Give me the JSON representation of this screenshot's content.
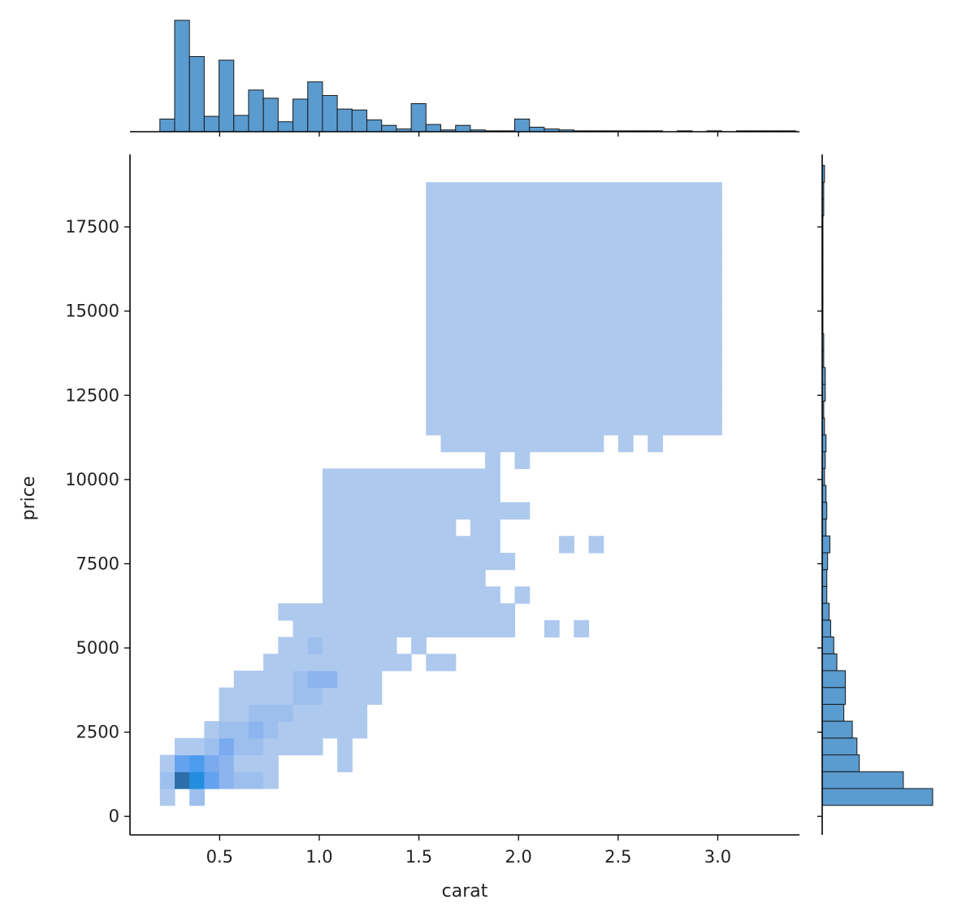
{
  "chart_data": {
    "type": "heatmap",
    "subtype": "jointplot-histogram",
    "title": "",
    "xlabel": "carat",
    "ylabel": "price",
    "xlim": [
      0.05,
      3.41
    ],
    "ylim": [
      -550,
      19650
    ],
    "x_ticks": [
      0.5,
      1.0,
      1.5,
      2.0,
      2.5,
      3.0
    ],
    "x_tick_labels": [
      "0.5",
      "1.0",
      "1.5",
      "2.0",
      "2.5",
      "3.0"
    ],
    "y_ticks": [
      0,
      2500,
      5000,
      7500,
      10000,
      12500,
      15000,
      17500
    ],
    "y_tick_labels": [
      "0",
      "2500",
      "5000",
      "7500",
      "10000",
      "12500",
      "15000",
      "17500"
    ],
    "grid": false,
    "color": "#4c8fd6",
    "bar_color": "#5a9bd0",
    "bin_origin_x": 0.2,
    "bin_width_x": 0.0742,
    "bin_origin_y": 326,
    "bin_width_y": 500,
    "heatmap_cells": [
      [
        1,
        0,
        2,
        0,
        0,
        0,
        0,
        0,
        0,
        0,
        0,
        0,
        0,
        0,
        0,
        0,
        0,
        0,
        0,
        0,
        0,
        0,
        0,
        0,
        0,
        0,
        0,
        0,
        0,
        0,
        0,
        0,
        0,
        0,
        0,
        0,
        0,
        0
      ],
      [
        2,
        9,
        8,
        5,
        3,
        2,
        2,
        1,
        0,
        0,
        0,
        0,
        0,
        0,
        0,
        0,
        0,
        0,
        0,
        0,
        0,
        0,
        0,
        0,
        0,
        0,
        0,
        0,
        0,
        0,
        0,
        0,
        0,
        0,
        0,
        0,
        0,
        0
      ],
      [
        1,
        5,
        6,
        4,
        3,
        1,
        1,
        1,
        0,
        0,
        0,
        0,
        1,
        0,
        0,
        0,
        0,
        0,
        0,
        0,
        0,
        0,
        0,
        0,
        0,
        0,
        0,
        0,
        0,
        0,
        0,
        0,
        0,
        0,
        0,
        0,
        0,
        0
      ],
      [
        0,
        1,
        1,
        2,
        4,
        2,
        2,
        1,
        1,
        1,
        1,
        0,
        1,
        0,
        0,
        0,
        0,
        0,
        0,
        0,
        0,
        0,
        0,
        0,
        0,
        0,
        0,
        0,
        0,
        0,
        0,
        0,
        0,
        0,
        0,
        0,
        0,
        0
      ],
      [
        0,
        0,
        0,
        1,
        2,
        2,
        3,
        2,
        1,
        1,
        1,
        1,
        1,
        1,
        0,
        0,
        0,
        0,
        0,
        0,
        0,
        0,
        0,
        0,
        0,
        0,
        0,
        0,
        0,
        0,
        0,
        0,
        0,
        0,
        0,
        0,
        0,
        0
      ],
      [
        0,
        0,
        0,
        0,
        1,
        1,
        2,
        2,
        2,
        1,
        1,
        1,
        1,
        1,
        0,
        0,
        0,
        0,
        0,
        0,
        0,
        0,
        0,
        0,
        0,
        0,
        0,
        0,
        0,
        0,
        0,
        0,
        0,
        0,
        0,
        0,
        0,
        0
      ],
      [
        0,
        0,
        0,
        0,
        1,
        1,
        1,
        1,
        1,
        2,
        2,
        1,
        1,
        1,
        1,
        0,
        0,
        0,
        0,
        0,
        0,
        0,
        0,
        0,
        0,
        0,
        0,
        0,
        0,
        0,
        0,
        0,
        0,
        0,
        0,
        0,
        0,
        0
      ],
      [
        0,
        0,
        0,
        0,
        0,
        1,
        1,
        1,
        1,
        2,
        3,
        3,
        1,
        1,
        1,
        0,
        0,
        0,
        0,
        0,
        0,
        0,
        0,
        0,
        0,
        0,
        0,
        0,
        0,
        0,
        0,
        0,
        0,
        0,
        0,
        0,
        0,
        0
      ],
      [
        0,
        0,
        0,
        0,
        0,
        0,
        0,
        1,
        1,
        1,
        1,
        1,
        1,
        1,
        1,
        1,
        1,
        0,
        1,
        1,
        0,
        0,
        0,
        0,
        0,
        0,
        0,
        0,
        0,
        0,
        0,
        0,
        0,
        0,
        0,
        0,
        0,
        0
      ],
      [
        0,
        0,
        0,
        0,
        0,
        0,
        0,
        0,
        1,
        1,
        2,
        1,
        1,
        1,
        1,
        1,
        0,
        1,
        0,
        0,
        0,
        0,
        0,
        0,
        0,
        0,
        0,
        0,
        0,
        0,
        0,
        0,
        0,
        0,
        0,
        0,
        0,
        0
      ],
      [
        0,
        0,
        0,
        0,
        0,
        0,
        0,
        0,
        0,
        1,
        1,
        1,
        1,
        1,
        1,
        1,
        1,
        1,
        1,
        1,
        1,
        1,
        1,
        1,
        0,
        0,
        1,
        0,
        1,
        0,
        0,
        0,
        0,
        0,
        0,
        0,
        0,
        0
      ],
      [
        0,
        0,
        0,
        0,
        0,
        0,
        0,
        0,
        1,
        1,
        1,
        1,
        1,
        1,
        1,
        1,
        1,
        1,
        1,
        1,
        1,
        1,
        1,
        1,
        0,
        0,
        0,
        0,
        0,
        0,
        0,
        0,
        0,
        0,
        0,
        0,
        0,
        0
      ],
      [
        0,
        0,
        0,
        0,
        0,
        0,
        0,
        0,
        0,
        0,
        0,
        1,
        1,
        1,
        1,
        1,
        1,
        1,
        1,
        1,
        1,
        1,
        1,
        0,
        1,
        0,
        0,
        0,
        0,
        0,
        0,
        0,
        0,
        0,
        0,
        0,
        0,
        0
      ],
      [
        0,
        0,
        0,
        0,
        0,
        0,
        0,
        0,
        0,
        0,
        0,
        1,
        1,
        1,
        1,
        1,
        1,
        1,
        1,
        1,
        1,
        1,
        0,
        0,
        0,
        0,
        0,
        0,
        0,
        0,
        0,
        0,
        0,
        0,
        0,
        0,
        0,
        0
      ],
      [
        0,
        0,
        0,
        0,
        0,
        0,
        0,
        0,
        0,
        0,
        0,
        1,
        1,
        1,
        1,
        1,
        1,
        1,
        1,
        1,
        1,
        1,
        1,
        1,
        0,
        0,
        0,
        0,
        0,
        0,
        0,
        0,
        0,
        0,
        0,
        0,
        0,
        0
      ],
      [
        0,
        0,
        0,
        0,
        0,
        0,
        0,
        0,
        0,
        0,
        0,
        1,
        1,
        1,
        1,
        1,
        1,
        1,
        1,
        1,
        1,
        1,
        1,
        0,
        0,
        0,
        0,
        1,
        0,
        1,
        0,
        0,
        0,
        0,
        0,
        0,
        0,
        0
      ],
      [
        0,
        0,
        0,
        0,
        0,
        0,
        0,
        0,
        0,
        0,
        0,
        1,
        1,
        1,
        1,
        1,
        1,
        1,
        1,
        1,
        0,
        1,
        1,
        0,
        0,
        0,
        0,
        0,
        0,
        0,
        0,
        0,
        0,
        0,
        0,
        0,
        0,
        0
      ],
      [
        0,
        0,
        0,
        0,
        0,
        0,
        0,
        0,
        0,
        0,
        0,
        1,
        1,
        1,
        1,
        1,
        1,
        1,
        1,
        1,
        1,
        1,
        1,
        1,
        1,
        0,
        0,
        0,
        0,
        0,
        0,
        0,
        0,
        0,
        0,
        0,
        0,
        0
      ],
      [
        0,
        0,
        0,
        0,
        0,
        0,
        0,
        0,
        0,
        0,
        0,
        1,
        1,
        1,
        1,
        1,
        1,
        1,
        1,
        1,
        1,
        1,
        1,
        0,
        0,
        0,
        0,
        0,
        0,
        0,
        0,
        0,
        0,
        0,
        0,
        0,
        0,
        0
      ],
      [
        0,
        0,
        0,
        0,
        0,
        0,
        0,
        0,
        0,
        0,
        0,
        1,
        1,
        1,
        1,
        1,
        1,
        1,
        1,
        1,
        1,
        1,
        1,
        0,
        0,
        0,
        0,
        0,
        0,
        0,
        0,
        0,
        0,
        0,
        0,
        0,
        0,
        0
      ],
      [
        0,
        0,
        0,
        0,
        0,
        0,
        0,
        0,
        0,
        0,
        0,
        0,
        0,
        0,
        0,
        0,
        0,
        0,
        0,
        0,
        0,
        0,
        1,
        0,
        1,
        0,
        0,
        0,
        0,
        0,
        0,
        0,
        0,
        0,
        0,
        0,
        0,
        0
      ],
      [
        0,
        0,
        0,
        0,
        0,
        0,
        0,
        0,
        0,
        0,
        0,
        0,
        0,
        0,
        0,
        0,
        0,
        0,
        0,
        1,
        1,
        1,
        1,
        1,
        1,
        1,
        1,
        1,
        1,
        1,
        0,
        1,
        0,
        1,
        0,
        0,
        0,
        0
      ],
      [
        0,
        0,
        0,
        0,
        0,
        0,
        0,
        0,
        0,
        0,
        0,
        0,
        0,
        0,
        0,
        0,
        0,
        0,
        1,
        1,
        1,
        1,
        1,
        1,
        1,
        1,
        1,
        1,
        1,
        1,
        1,
        1,
        1,
        1,
        1,
        1,
        1,
        1
      ],
      [
        0,
        0,
        0,
        0,
        0,
        0,
        0,
        0,
        0,
        0,
        0,
        0,
        0,
        0,
        0,
        0,
        0,
        0,
        1,
        1,
        1,
        1,
        1,
        1,
        1,
        1,
        1,
        1,
        1,
        1,
        1,
        1,
        1,
        1,
        1,
        1,
        1,
        1
      ],
      [
        0,
        0,
        0,
        0,
        0,
        0,
        0,
        0,
        0,
        0,
        0,
        0,
        0,
        0,
        0,
        0,
        0,
        0,
        1,
        1,
        1,
        1,
        1,
        1,
        1,
        1,
        1,
        1,
        1,
        1,
        1,
        1,
        1,
        1,
        1,
        1,
        1,
        1
      ],
      [
        0,
        0,
        0,
        0,
        0,
        0,
        0,
        0,
        0,
        0,
        0,
        0,
        0,
        0,
        0,
        0,
        0,
        0,
        1,
        1,
        1,
        1,
        1,
        1,
        1,
        1,
        1,
        1,
        1,
        1,
        1,
        1,
        1,
        1,
        1,
        1,
        1,
        1
      ],
      [
        0,
        0,
        0,
        0,
        0,
        0,
        0,
        0,
        0,
        0,
        0,
        0,
        0,
        0,
        0,
        0,
        0,
        0,
        1,
        1,
        1,
        1,
        1,
        1,
        1,
        1,
        1,
        1,
        1,
        1,
        1,
        1,
        1,
        1,
        1,
        1,
        1,
        1
      ],
      [
        0,
        0,
        0,
        0,
        0,
        0,
        0,
        0,
        0,
        0,
        0,
        0,
        0,
        0,
        0,
        0,
        0,
        0,
        1,
        1,
        1,
        1,
        1,
        1,
        1,
        1,
        1,
        1,
        1,
        1,
        1,
        1,
        1,
        1,
        1,
        1,
        1,
        1
      ],
      [
        0,
        0,
        0,
        0,
        0,
        0,
        0,
        0,
        0,
        0,
        0,
        0,
        0,
        0,
        0,
        0,
        0,
        0,
        1,
        1,
        1,
        1,
        1,
        1,
        1,
        1,
        1,
        1,
        1,
        1,
        1,
        1,
        1,
        1,
        1,
        1,
        1,
        1
      ],
      [
        0,
        0,
        0,
        0,
        0,
        0,
        0,
        0,
        0,
        0,
        0,
        0,
        0,
        0,
        0,
        0,
        0,
        0,
        1,
        1,
        1,
        1,
        1,
        1,
        1,
        1,
        1,
        1,
        1,
        1,
        1,
        1,
        1,
        1,
        1,
        1,
        1,
        1
      ],
      [
        0,
        0,
        0,
        0,
        0,
        0,
        0,
        0,
        0,
        0,
        0,
        0,
        0,
        0,
        0,
        0,
        0,
        0,
        1,
        1,
        1,
        1,
        1,
        1,
        1,
        1,
        1,
        1,
        1,
        1,
        1,
        1,
        1,
        1,
        1,
        1,
        1,
        1
      ],
      [
        0,
        0,
        0,
        0,
        0,
        0,
        0,
        0,
        0,
        0,
        0,
        0,
        0,
        0,
        0,
        0,
        0,
        0,
        1,
        1,
        1,
        1,
        1,
        1,
        1,
        1,
        1,
        1,
        1,
        1,
        1,
        1,
        1,
        1,
        1,
        1,
        1,
        1
      ],
      [
        0,
        0,
        0,
        0,
        0,
        0,
        0,
        0,
        0,
        0,
        0,
        0,
        0,
        0,
        0,
        0,
        0,
        0,
        1,
        1,
        1,
        1,
        1,
        1,
        1,
        1,
        1,
        1,
        1,
        1,
        1,
        1,
        1,
        1,
        1,
        1,
        1,
        1
      ],
      [
        0,
        0,
        0,
        0,
        0,
        0,
        0,
        0,
        0,
        0,
        0,
        0,
        0,
        0,
        0,
        0,
        0,
        0,
        1,
        1,
        1,
        1,
        1,
        1,
        1,
        1,
        1,
        1,
        1,
        1,
        1,
        1,
        1,
        1,
        1,
        1,
        1,
        1
      ],
      [
        0,
        0,
        0,
        0,
        0,
        0,
        0,
        0,
        0,
        0,
        0,
        0,
        0,
        0,
        0,
        0,
        0,
        0,
        1,
        1,
        1,
        1,
        1,
        1,
        1,
        1,
        1,
        1,
        1,
        1,
        1,
        1,
        1,
        1,
        1,
        1,
        1,
        1
      ],
      [
        0,
        0,
        0,
        0,
        0,
        0,
        0,
        0,
        0,
        0,
        0,
        0,
        0,
        0,
        0,
        0,
        0,
        0,
        1,
        1,
        1,
        1,
        1,
        1,
        1,
        1,
        1,
        1,
        1,
        1,
        1,
        1,
        1,
        1,
        1,
        1,
        1,
        1
      ],
      [
        0,
        0,
        0,
        0,
        0,
        0,
        0,
        0,
        0,
        0,
        0,
        0,
        0,
        0,
        0,
        0,
        0,
        0,
        1,
        1,
        1,
        1,
        1,
        1,
        1,
        1,
        1,
        1,
        1,
        1,
        1,
        1,
        1,
        1,
        1,
        1,
        1,
        1
      ]
    ],
    "marginal_x": {
      "bin_edges_start": 0.2,
      "bin_width": 0.0742,
      "counts": [
        14,
        123,
        83,
        17,
        79,
        18,
        46,
        37,
        11,
        36,
        55,
        40,
        25,
        24,
        13,
        7,
        3,
        31,
        8,
        2,
        7,
        2,
        1,
        1,
        14,
        5,
        3,
        2,
        1,
        1,
        1,
        1,
        1,
        1,
        0,
        1,
        0,
        1,
        0,
        1,
        1,
        1,
        1
      ]
    },
    "marginal_y": {
      "bin_edges_start": 326,
      "bin_width": 500,
      "counts": [
        143,
        105,
        48,
        45,
        39,
        28,
        30,
        30,
        19,
        15,
        11,
        9,
        6,
        6,
        7,
        10,
        5,
        6,
        5,
        3,
        4,
        5,
        3,
        2,
        4,
        4,
        2,
        2,
        1,
        1,
        1,
        1,
        1,
        1,
        1,
        2,
        2,
        3
      ]
    }
  }
}
